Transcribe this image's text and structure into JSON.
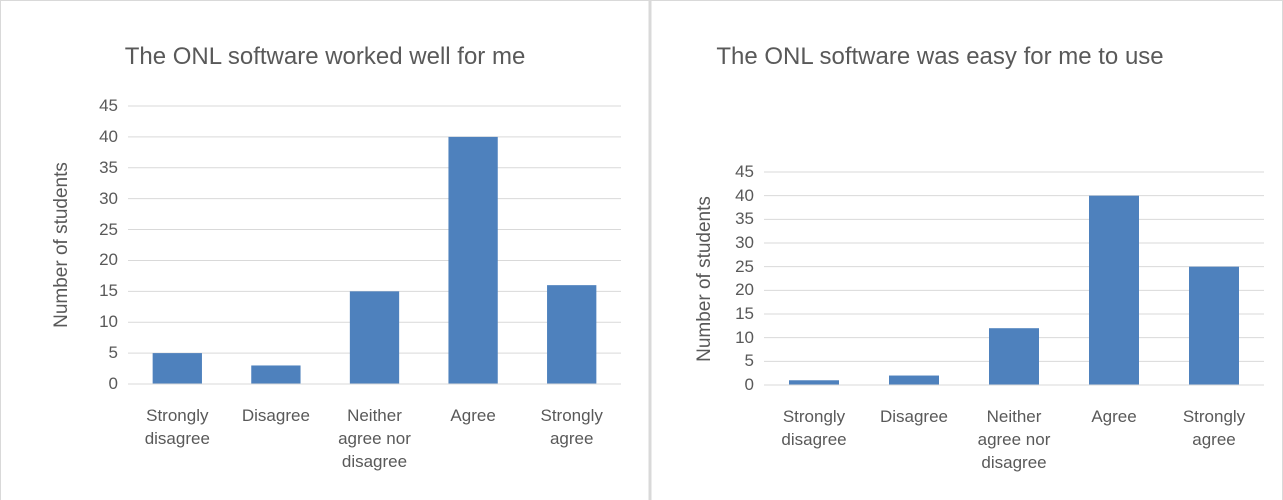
{
  "chart_data": [
    {
      "type": "bar",
      "title": "The ONL software worked well for me",
      "y_label": "Number of students",
      "categories": [
        "Strongly disagree",
        "Disagree",
        "Neither agree nor disagree",
        "Agree",
        "Strongly agree"
      ],
      "values": [
        5,
        3,
        15,
        40,
        16
      ],
      "color": "#4e81bd",
      "ylim": [
        0,
        45
      ],
      "yticks": [
        0,
        5,
        10,
        15,
        20,
        25,
        30,
        35,
        40,
        45
      ],
      "grid": true
    },
    {
      "type": "bar",
      "title": "The ONL software was easy for me to use",
      "y_label": "Number of students",
      "categories": [
        "Strongly disagree",
        "Disagree",
        "Neither agree nor disagree",
        "Agree",
        "Strongly agree"
      ],
      "values": [
        1,
        2,
        12,
        40,
        25
      ],
      "color": "#4e81bd",
      "ylim": [
        0,
        45
      ],
      "yticks": [
        0,
        5,
        10,
        15,
        20,
        25,
        30,
        35,
        40,
        45
      ],
      "grid": true
    }
  ]
}
